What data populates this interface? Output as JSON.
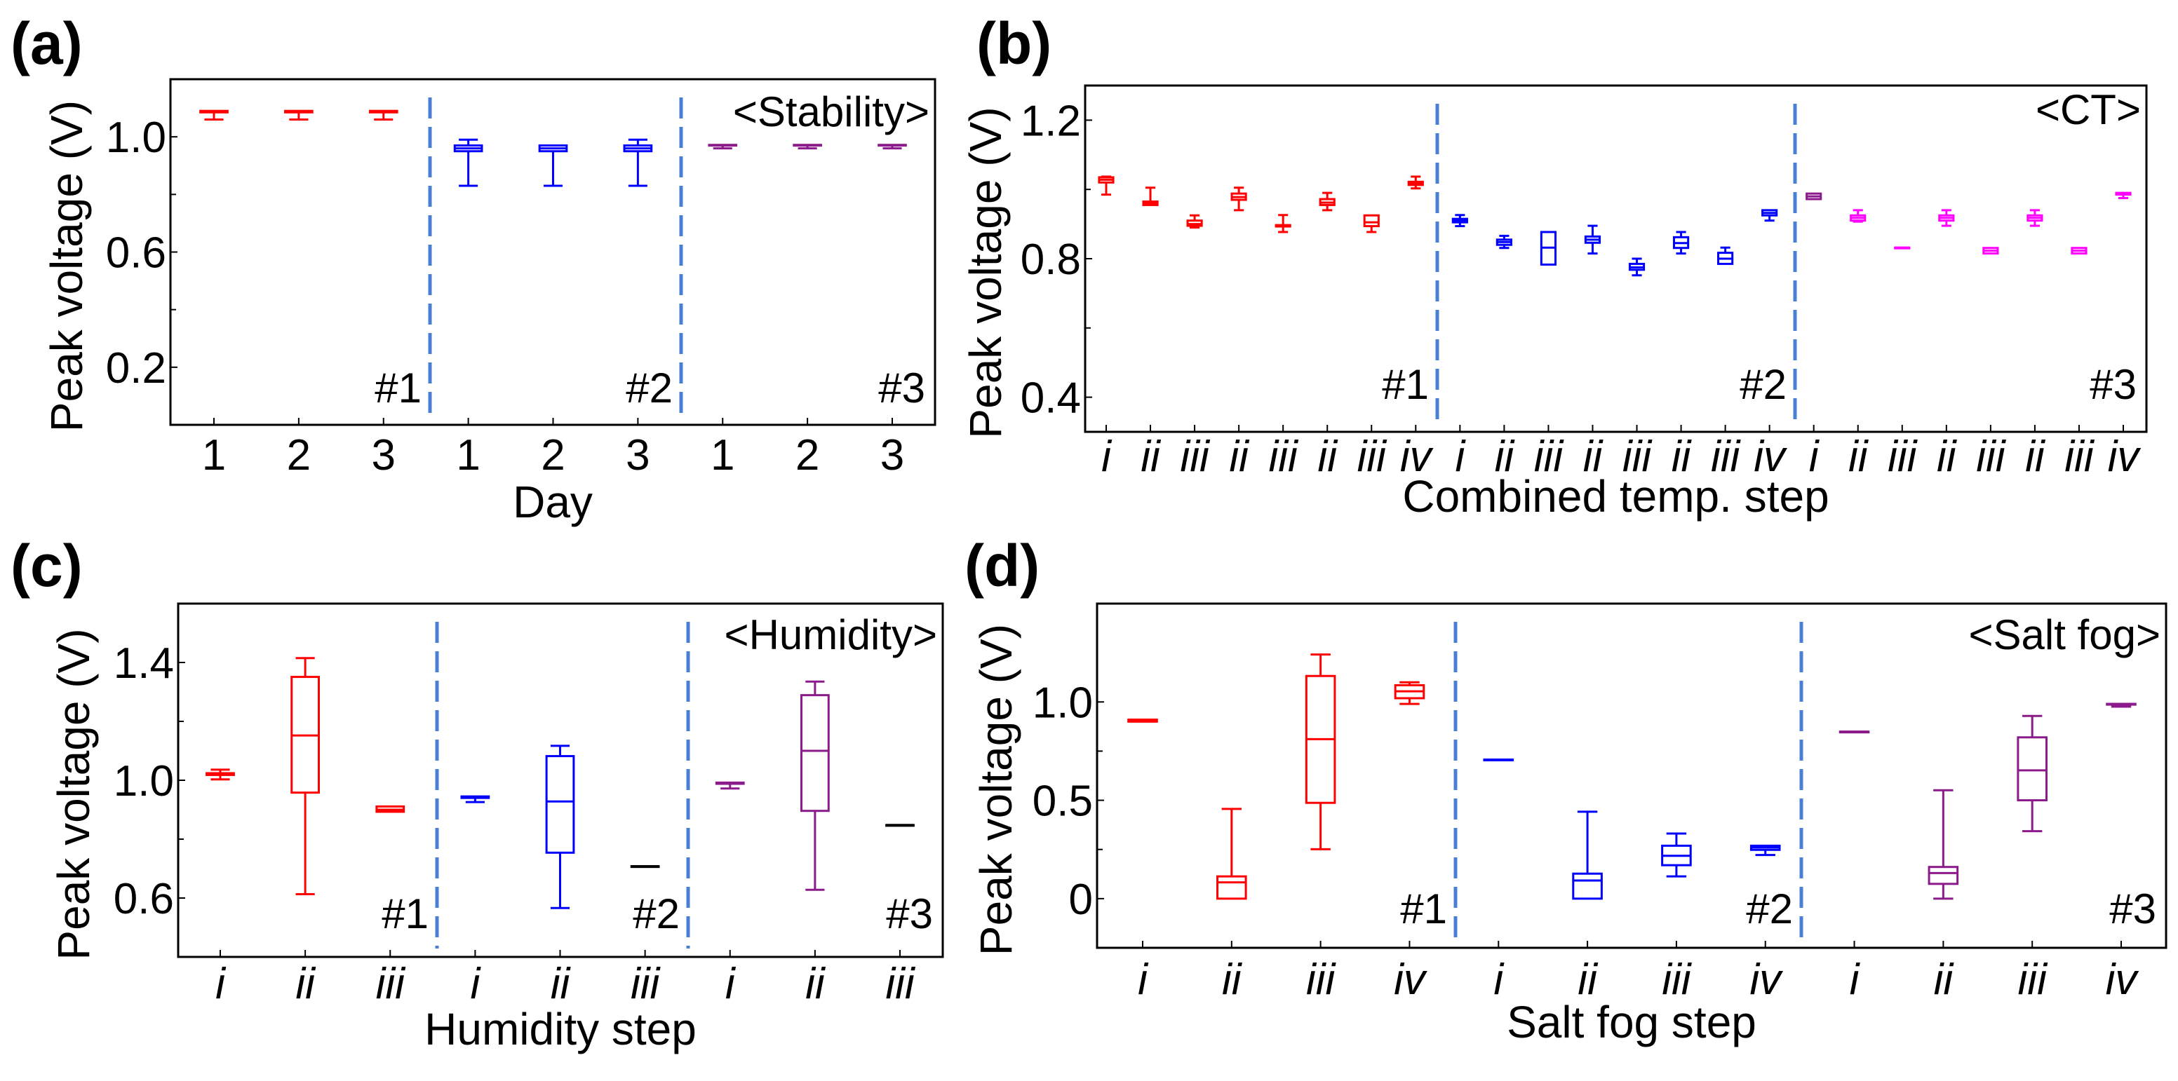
{
  "colors": {
    "red": "#ff0000",
    "blue": "#0000ff",
    "purple": "#8b1a8b",
    "magenta": "#ff00ff",
    "black": "#000000",
    "divider": "#4a7fd6"
  },
  "chart_data": [
    {
      "type": "box",
      "panel_label": "(a)",
      "annotation": "<Stability>",
      "group_labels": [
        "#1",
        "#2",
        "#3"
      ],
      "xlabel": "Day",
      "ylabel": "Peak voltage (V)",
      "ylim": [
        0,
        1.2
      ],
      "yticks": [
        0.2,
        0.6,
        1.0
      ],
      "ytick_labels": [
        "0.2",
        "0.6",
        "1.0"
      ],
      "italic_ticks": false,
      "categories": [
        "1",
        "2",
        "3",
        "1",
        "2",
        "3",
        "1",
        "2",
        "3"
      ],
      "boxes": [
        {
          "color": "red",
          "lo": 1.06,
          "q1": 1.085,
          "med": 1.088,
          "q3": 1.09,
          "hi": 1.09
        },
        {
          "color": "red",
          "lo": 1.06,
          "q1": 1.085,
          "med": 1.088,
          "q3": 1.09,
          "hi": 1.09
        },
        {
          "color": "red",
          "lo": 1.06,
          "q1": 1.085,
          "med": 1.088,
          "q3": 1.09,
          "hi": 1.09
        },
        {
          "color": "blue",
          "lo": 0.83,
          "q1": 0.95,
          "med": 0.96,
          "q3": 0.97,
          "hi": 0.99
        },
        {
          "color": "blue",
          "lo": 0.83,
          "q1": 0.95,
          "med": 0.96,
          "q3": 0.97,
          "hi": 0.97
        },
        {
          "color": "blue",
          "lo": 0.83,
          "q1": 0.95,
          "med": 0.96,
          "q3": 0.97,
          "hi": 0.99
        },
        {
          "color": "purple",
          "lo": 0.96,
          "q1": 0.97,
          "med": 0.97,
          "q3": 0.972,
          "hi": 0.972
        },
        {
          "color": "purple",
          "lo": 0.96,
          "q1": 0.97,
          "med": 0.97,
          "q3": 0.972,
          "hi": 0.972
        },
        {
          "color": "purple",
          "lo": 0.96,
          "q1": 0.97,
          "med": 0.97,
          "q3": 0.972,
          "hi": 0.972
        }
      ]
    },
    {
      "type": "box",
      "panel_label": "(b)",
      "annotation": "<CT>",
      "group_labels": [
        "#1",
        "#2",
        "#3"
      ],
      "xlabel": "Combined temp. step",
      "ylabel": "Peak voltage (V)",
      "ylim": [
        0.3,
        1.3
      ],
      "yticks": [
        0.4,
        0.8,
        1.2
      ],
      "ytick_labels": [
        "0.4",
        "0.8",
        "1.2"
      ],
      "italic_ticks": true,
      "categories": [
        "i",
        "ii",
        "iii",
        "ii",
        "iii",
        "ii",
        "iii",
        "iv",
        "i",
        "ii",
        "iii",
        "ii",
        "iii",
        "ii",
        "iii",
        "iv",
        "i",
        "ii",
        "iii",
        "ii",
        "iii",
        "ii",
        "iii",
        "iv"
      ],
      "boxes": [
        {
          "color": "red",
          "lo": 0.985,
          "q1": 1.02,
          "med": 1.028,
          "q3": 1.035,
          "hi": 1.037
        },
        {
          "color": "red",
          "lo": 0.955,
          "q1": 0.955,
          "med": 0.96,
          "q3": 0.965,
          "hi": 1.005
        },
        {
          "color": "red",
          "lo": 0.89,
          "q1": 0.895,
          "med": 0.9,
          "q3": 0.91,
          "hi": 0.925
        },
        {
          "color": "red",
          "lo": 0.94,
          "q1": 0.97,
          "med": 0.978,
          "q3": 0.988,
          "hi": 1.005
        },
        {
          "color": "red",
          "lo": 0.877,
          "q1": 0.893,
          "med": 0.895,
          "q3": 0.897,
          "hi": 0.926
        },
        {
          "color": "red",
          "lo": 0.94,
          "q1": 0.955,
          "med": 0.962,
          "q3": 0.972,
          "hi": 0.99
        },
        {
          "color": "red",
          "lo": 0.877,
          "q1": 0.894,
          "med": 0.905,
          "q3": 0.925,
          "hi": 0.925
        },
        {
          "color": "red",
          "lo": 1.003,
          "q1": 1.013,
          "med": 1.018,
          "q3": 1.022,
          "hi": 1.037
        },
        {
          "color": "blue",
          "lo": 0.894,
          "q1": 0.905,
          "med": 0.91,
          "q3": 0.915,
          "hi": 0.926
        },
        {
          "color": "blue",
          "lo": 0.831,
          "q1": 0.84,
          "med": 0.848,
          "q3": 0.855,
          "hi": 0.866
        },
        {
          "color": "blue",
          "lo": 0.783,
          "q1": 0.783,
          "med": 0.832,
          "q3": 0.877,
          "hi": 0.877
        },
        {
          "color": "blue",
          "lo": 0.815,
          "q1": 0.846,
          "med": 0.855,
          "q3": 0.864,
          "hi": 0.895
        },
        {
          "color": "blue",
          "lo": 0.752,
          "q1": 0.768,
          "med": 0.775,
          "q3": 0.785,
          "hi": 0.8
        },
        {
          "color": "blue",
          "lo": 0.815,
          "q1": 0.831,
          "med": 0.845,
          "q3": 0.862,
          "hi": 0.877
        },
        {
          "color": "blue",
          "lo": 0.785,
          "q1": 0.785,
          "med": 0.8,
          "q3": 0.817,
          "hi": 0.832
        },
        {
          "color": "blue",
          "lo": 0.91,
          "q1": 0.925,
          "med": 0.932,
          "q3": 0.94,
          "hi": 0.94
        },
        {
          "color": "purple",
          "lo": 0.972,
          "q1": 0.972,
          "med": 0.98,
          "q3": 0.988,
          "hi": 0.988
        },
        {
          "color": "magenta",
          "lo": 0.907,
          "q1": 0.91,
          "med": 0.918,
          "q3": 0.925,
          "hi": 0.94
        },
        {
          "color": "magenta",
          "lo": 0.832,
          "q1": 0.832,
          "med": 0.832,
          "q3": 0.832,
          "hi": 0.832
        },
        {
          "color": "magenta",
          "lo": 0.895,
          "q1": 0.91,
          "med": 0.918,
          "q3": 0.925,
          "hi": 0.94
        },
        {
          "color": "magenta",
          "lo": 0.815,
          "q1": 0.815,
          "med": 0.823,
          "q3": 0.831,
          "hi": 0.831
        },
        {
          "color": "magenta",
          "lo": 0.895,
          "q1": 0.91,
          "med": 0.918,
          "q3": 0.925,
          "hi": 0.94
        },
        {
          "color": "magenta",
          "lo": 0.815,
          "q1": 0.815,
          "med": 0.823,
          "q3": 0.831,
          "hi": 0.831
        },
        {
          "color": "magenta",
          "lo": 0.975,
          "q1": 0.985,
          "med": 0.988,
          "q3": 0.99,
          "hi": 0.99
        }
      ]
    },
    {
      "type": "box",
      "panel_label": "(c)",
      "annotation": "<Humidity>",
      "group_labels": [
        "#1",
        "#2",
        "#3"
      ],
      "xlabel": "Humidity step",
      "ylabel": "Peak voltage (V)",
      "ylim": [
        0.4,
        1.6
      ],
      "yticks": [
        0.6,
        1.0,
        1.4
      ],
      "ytick_labels": [
        "0.6",
        "1.0",
        "1.4"
      ],
      "italic_ticks": true,
      "categories": [
        "i",
        "ii",
        "iii",
        "i",
        "ii",
        "iii",
        "i",
        "ii",
        "iii"
      ],
      "boxes": [
        {
          "color": "red",
          "lo": 1.003,
          "q1": 1.018,
          "med": 1.021,
          "q3": 1.024,
          "hi": 1.036
        },
        {
          "color": "red",
          "lo": 0.613,
          "q1": 0.958,
          "med": 1.152,
          "q3": 1.351,
          "hi": 1.415
        },
        {
          "color": "red",
          "lo": 0.893,
          "q1": 0.893,
          "med": 0.9,
          "q3": 0.911,
          "hi": 0.911
        },
        {
          "color": "blue",
          "lo": 0.926,
          "q1": 0.94,
          "med": 0.943,
          "q3": 0.945,
          "hi": 0.945
        },
        {
          "color": "blue",
          "lo": 0.566,
          "q1": 0.754,
          "med": 0.928,
          "q3": 1.082,
          "hi": 1.117
        },
        {
          "color": "black",
          "lo": 0.708,
          "q1": 0.708,
          "med": 0.708,
          "q3": 0.708,
          "hi": 0.708
        },
        {
          "color": "purple",
          "lo": 0.972,
          "q1": 0.988,
          "med": 0.99,
          "q3": 0.992,
          "hi": 0.992
        },
        {
          "color": "purple",
          "lo": 0.628,
          "q1": 0.896,
          "med": 1.1,
          "q3": 1.289,
          "hi": 1.335
        },
        {
          "color": "black",
          "lo": 0.848,
          "q1": 0.848,
          "med": 0.848,
          "q3": 0.848,
          "hi": 0.848
        }
      ]
    },
    {
      "type": "box",
      "panel_label": "(d)",
      "annotation": "<Salt fog>",
      "group_labels": [
        "#1",
        "#2",
        "#3"
      ],
      "xlabel": "Salt fog step",
      "ylabel": "Peak voltage (V)",
      "ylim": [
        -0.25,
        1.5
      ],
      "yticks": [
        0,
        0.5,
        1.0
      ],
      "ytick_labels": [
        "0",
        "0.5",
        "1.0"
      ],
      "italic_ticks": true,
      "categories": [
        "i",
        "ii",
        "iii",
        "iv",
        "i",
        "ii",
        "iii",
        "iv",
        "i",
        "ii",
        "iii",
        "iv"
      ],
      "boxes": [
        {
          "color": "red",
          "lo": 0.9,
          "q1": 0.9,
          "med": 0.905,
          "q3": 0.91,
          "hi": 0.91
        },
        {
          "color": "red",
          "lo": 0.0,
          "q1": 0.0,
          "med": 0.083,
          "q3": 0.113,
          "hi": 0.456
        },
        {
          "color": "red",
          "lo": 0.251,
          "q1": 0.487,
          "med": 0.811,
          "q3": 1.132,
          "hi": 1.241
        },
        {
          "color": "red",
          "lo": 0.99,
          "q1": 1.019,
          "med": 1.054,
          "q3": 1.085,
          "hi": 1.1
        },
        {
          "color": "blue",
          "lo": 0.707,
          "q1": 0.707,
          "med": 0.707,
          "q3": 0.707,
          "hi": 0.707
        },
        {
          "color": "blue",
          "lo": 0.0,
          "q1": 0.0,
          "med": 0.092,
          "q3": 0.127,
          "hi": 0.442
        },
        {
          "color": "blue",
          "lo": 0.113,
          "q1": 0.17,
          "med": 0.218,
          "q3": 0.269,
          "hi": 0.331
        },
        {
          "color": "blue",
          "lo": 0.222,
          "q1": 0.248,
          "med": 0.26,
          "q3": 0.269,
          "hi": 0.269
        },
        {
          "color": "purple",
          "lo": 0.849,
          "q1": 0.849,
          "med": 0.849,
          "q3": 0.849,
          "hi": 0.849
        },
        {
          "color": "purple",
          "lo": 0.0,
          "q1": 0.075,
          "med": 0.13,
          "q3": 0.161,
          "hi": 0.551
        },
        {
          "color": "purple",
          "lo": 0.343,
          "q1": 0.5,
          "med": 0.652,
          "q3": 0.82,
          "hi": 0.929
        },
        {
          "color": "purple",
          "lo": 0.976,
          "q1": 0.99,
          "med": 0.99,
          "q3": 0.99,
          "hi": 0.99
        }
      ]
    }
  ]
}
